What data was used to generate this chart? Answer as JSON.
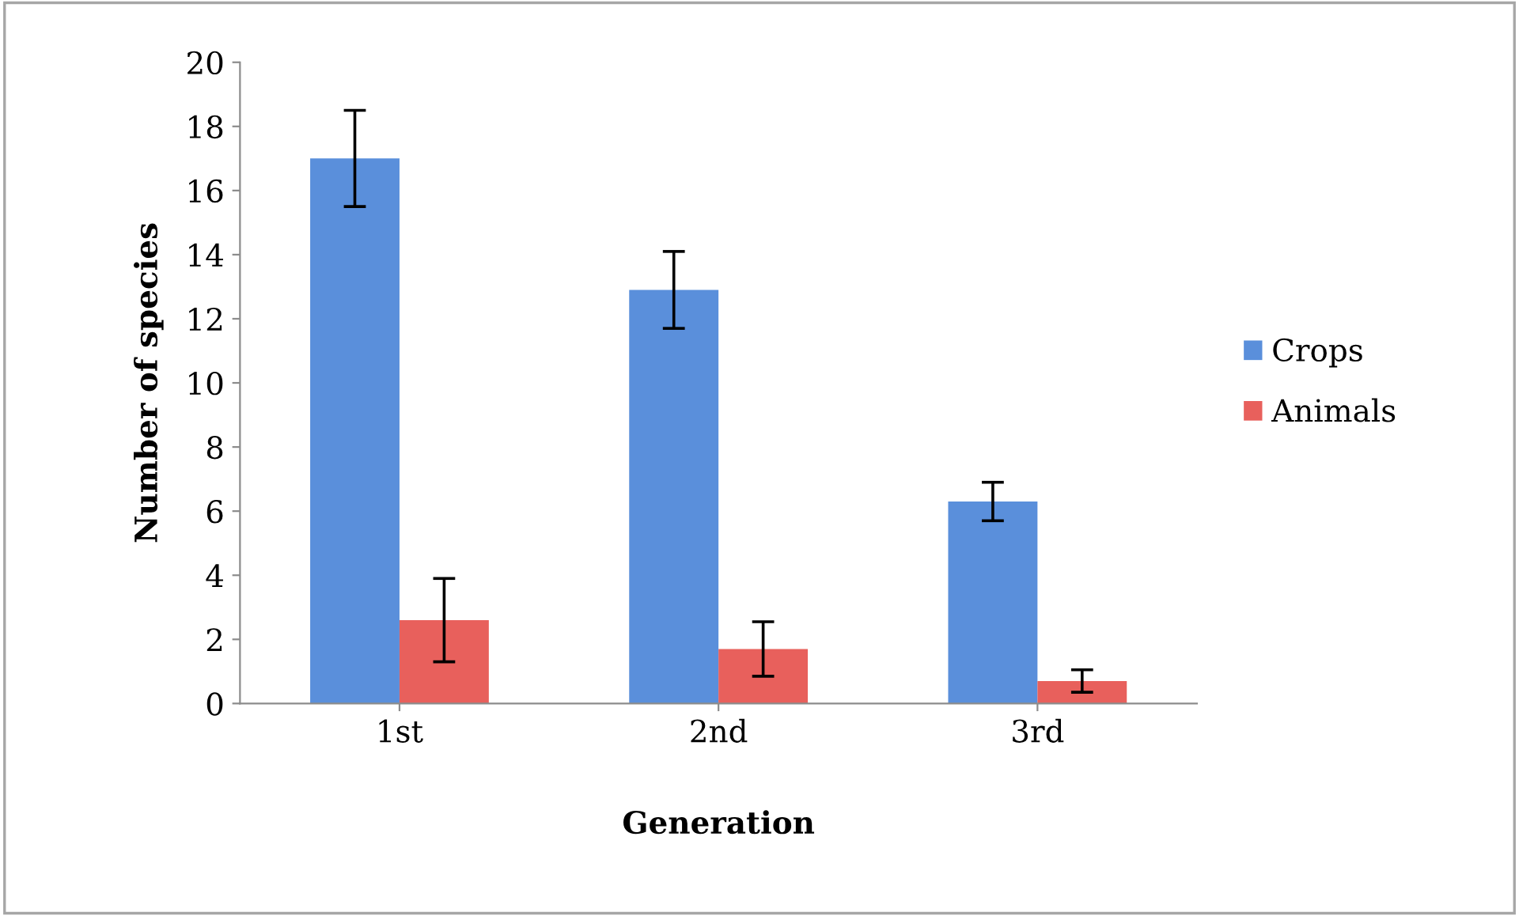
{
  "chart_data": {
    "type": "bar",
    "xlabel": "Generation",
    "ylabel": "Number of species",
    "categories": [
      "1st",
      "2nd",
      "3rd"
    ],
    "series": [
      {
        "name": "Crops",
        "color": "#5a8fdb",
        "values": [
          17.0,
          12.9,
          6.3
        ],
        "errors": [
          1.5,
          1.2,
          0.6
        ]
      },
      {
        "name": "Animals",
        "color": "#e8605c",
        "values": [
          2.6,
          1.7,
          0.7
        ],
        "errors": [
          1.3,
          0.85,
          0.35
        ]
      }
    ],
    "ylim": [
      0,
      20
    ],
    "yticks": [
      0,
      2,
      4,
      6,
      8,
      10,
      12,
      14,
      16,
      18,
      20
    ],
    "grid": false,
    "legend": "right"
  }
}
